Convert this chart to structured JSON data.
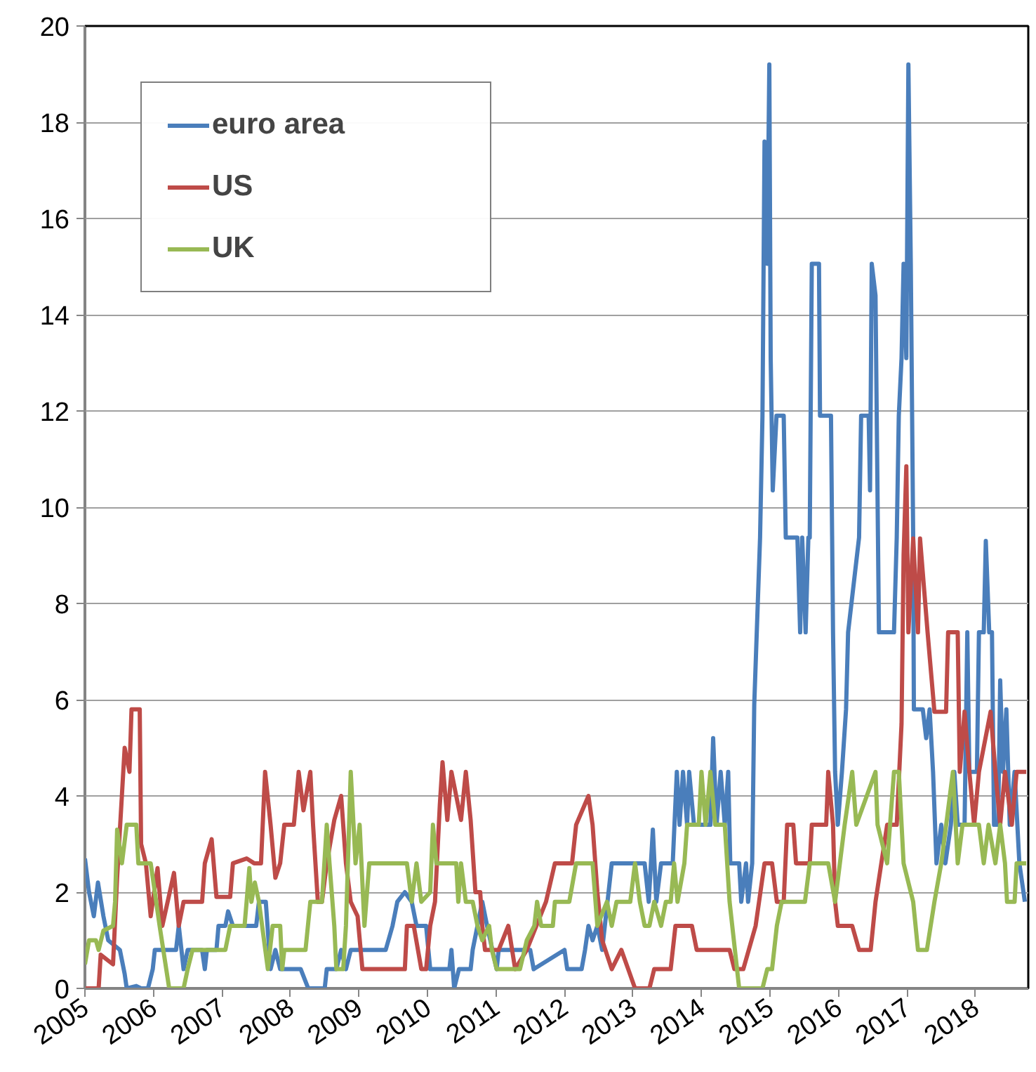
{
  "chart_data": {
    "type": "line",
    "xlim": [
      2005,
      2018.77
    ],
    "xticks": [
      2005,
      2006,
      2007,
      2008,
      2009,
      2010,
      2011,
      2012,
      2013,
      2014,
      2015,
      2016,
      2017,
      2018
    ],
    "ylim": [
      0,
      20
    ],
    "yticks": [
      0,
      2,
      4,
      6,
      8,
      10,
      12,
      14,
      16,
      18,
      20
    ],
    "grid": "y",
    "legend": "top left",
    "line_style": "solid",
    "marker": "none",
    "series": [
      {
        "name": "euro area",
        "color": "#4a7ebb",
        "x": [
          2005.0,
          2005.06,
          2005.13,
          2005.19,
          2005.27,
          2005.34,
          2005.51,
          2005.58,
          2005.61,
          2005.75,
          2005.82,
          2005.92,
          2005.99,
          2006.02,
          2006.33,
          2006.37,
          2006.44,
          2006.5,
          2006.71,
          2006.75,
          2006.78,
          2006.92,
          2006.95,
          2007.05,
          2007.09,
          2007.16,
          2007.5,
          2007.54,
          2007.64,
          2007.71,
          2007.78,
          2007.85,
          2008.15,
          2008.26,
          2008.5,
          2008.53,
          2008.67,
          2008.74,
          2008.81,
          2008.88,
          2009.39,
          2009.49,
          2009.56,
          2009.67,
          2009.77,
          2009.84,
          2009.98,
          2010.04,
          2010.32,
          2010.35,
          2010.39,
          2010.46,
          2010.63,
          2010.66,
          2010.73,
          2010.8,
          2010.87,
          2011.01,
          2011.04,
          2011.5,
          2011.55,
          2012.0,
          2012.04,
          2012.25,
          2012.3,
          2012.35,
          2012.41,
          2012.48,
          2012.55,
          2012.69,
          2013.17,
          2013.23,
          2013.29,
          2013.34,
          2013.41,
          2013.58,
          2013.64,
          2013.68,
          2013.73,
          2013.79,
          2013.82,
          2013.89,
          2014.13,
          2014.17,
          2014.22,
          2014.28,
          2014.34,
          2014.39,
          2014.42,
          2014.55,
          2014.58,
          2014.65,
          2014.68,
          2014.74,
          2014.77,
          2014.855,
          2014.89,
          2014.92,
          2014.96,
          2014.99,
          2015.01,
          2015.04,
          2015.095,
          2015.2,
          2015.23,
          2015.4,
          2015.44,
          2015.47,
          2015.52,
          2015.56,
          2015.58,
          2015.61,
          2015.715,
          2015.73,
          2015.89,
          2015.92,
          2015.95,
          2015.99,
          2016.05,
          2016.11,
          2016.14,
          2016.3,
          2016.33,
          2016.44,
          2016.46,
          2016.485,
          2016.54,
          2016.59,
          2016.81,
          2016.85,
          2016.88,
          2016.92,
          2016.95,
          2016.99,
          2017.02,
          2017.055,
          2017.09,
          2017.1,
          2017.18,
          2017.23,
          2017.28,
          2017.33,
          2017.38,
          2017.43,
          2017.5,
          2017.56,
          2017.64,
          2017.69,
          2017.74,
          2017.84,
          2017.88,
          2017.91,
          2018.02,
          2018.05,
          2018.12,
          2018.15,
          2018.2,
          2018.24,
          2018.27,
          2018.33,
          2018.36,
          2018.4,
          2018.45,
          2018.5,
          2018.57,
          2018.64,
          2018.72
        ],
        "values": [
          2.7,
          2.0,
          1.5,
          2.2,
          1.5,
          1.0,
          0.8,
          0.3,
          0,
          0.05,
          0,
          0,
          0.4,
          0.8,
          0.8,
          1.3,
          0.4,
          0.8,
          0.8,
          0.4,
          0.8,
          0.8,
          1.3,
          1.3,
          1.6,
          1.3,
          1.3,
          1.8,
          1.8,
          0.4,
          0.8,
          0.4,
          0.4,
          0,
          0,
          0.4,
          0.4,
          0.8,
          0.4,
          0.8,
          0.8,
          1.3,
          1.8,
          2.0,
          1.8,
          1.3,
          1.3,
          0.4,
          0.4,
          0.8,
          0,
          0.4,
          0.4,
          0.8,
          1.3,
          1.8,
          1.3,
          0.4,
          0.8,
          0.8,
          0.4,
          0.8,
          0.4,
          0.4,
          0.8,
          1.3,
          1.0,
          1.3,
          0.8,
          2.6,
          2.6,
          1.8,
          3.3,
          1.8,
          2.6,
          2.6,
          4.5,
          3.4,
          4.5,
          3.4,
          4.5,
          3.4,
          3.4,
          5.2,
          3.4,
          4.5,
          3.4,
          4.5,
          2.6,
          2.6,
          1.8,
          2.6,
          1.8,
          2.6,
          5.9,
          9.37,
          11.9,
          17.6,
          15.06,
          19.2,
          13.1,
          10.35,
          11.9,
          11.9,
          9.37,
          9.37,
          7.4,
          9.37,
          7.4,
          9.37,
          9.37,
          15.06,
          15.06,
          11.9,
          11.9,
          7.4,
          4.5,
          3.4,
          4.5,
          5.8,
          7.4,
          9.37,
          11.9,
          11.9,
          10.35,
          15.06,
          14.4,
          7.4,
          7.4,
          9.37,
          11.9,
          13.1,
          15.06,
          13.1,
          19.2,
          15.06,
          9.37,
          5.8,
          5.8,
          5.8,
          5.2,
          5.8,
          4.5,
          2.6,
          3.4,
          2.6,
          3.4,
          4.5,
          3.4,
          3.4,
          7.4,
          4.5,
          4.5,
          7.4,
          7.4,
          9.3,
          7.4,
          7.4,
          3.4,
          3.4,
          6.4,
          4.5,
          5.8,
          3.4,
          4.5,
          2.6,
          1.8
        ]
      },
      {
        "name": "US",
        "color": "#be4b48",
        "x": [
          2005.0,
          2005.2,
          2005.23,
          2005.41,
          2005.47,
          2005.58,
          2005.65,
          2005.68,
          2005.8,
          2005.82,
          2005.89,
          2005.96,
          2006.06,
          2006.13,
          2006.3,
          2006.37,
          2006.44,
          2006.71,
          2006.75,
          2006.85,
          2006.92,
          2007.12,
          2007.16,
          2007.36,
          2007.47,
          2007.57,
          2007.63,
          2007.71,
          2007.78,
          2007.85,
          2007.91,
          2008.05,
          2008.12,
          2008.19,
          2008.29,
          2008.33,
          2008.4,
          2008.46,
          2008.53,
          2008.64,
          2008.74,
          2008.81,
          2008.88,
          2008.98,
          2009.05,
          2009.67,
          2009.7,
          2009.8,
          2009.91,
          2009.98,
          2010.04,
          2010.11,
          2010.18,
          2010.22,
          2010.29,
          2010.35,
          2010.49,
          2010.56,
          2010.63,
          2010.7,
          2010.77,
          2010.8,
          2010.84,
          2011.04,
          2011.18,
          2011.28,
          2011.45,
          2011.59,
          2011.73,
          2011.86,
          2012.11,
          2012.17,
          2012.35,
          2012.41,
          2012.48,
          2012.55,
          2012.69,
          2012.83,
          2012.93,
          2013.03,
          2013.24,
          2013.31,
          2013.55,
          2013.62,
          2013.86,
          2013.93,
          2014.41,
          2014.48,
          2014.61,
          2014.79,
          2014.92,
          2015.03,
          2015.1,
          2015.2,
          2015.25,
          2015.34,
          2015.38,
          2015.58,
          2015.61,
          2015.82,
          2015.85,
          2015.92,
          2015.95,
          2015.99,
          2016.2,
          2016.3,
          2016.47,
          2016.54,
          2016.71,
          2016.85,
          2016.92,
          2016.95,
          2016.99,
          2017.02,
          2017.09,
          2017.16,
          2017.19,
          2017.3,
          2017.4,
          2017.57,
          2017.6,
          2017.74,
          2017.77,
          2017.84,
          2017.91,
          2017.98,
          2018.05,
          2018.22,
          2018.29,
          2018.36,
          2018.43,
          2018.53,
          2018.6,
          2018.74
        ],
        "values": [
          0,
          0,
          0.7,
          0.5,
          2.3,
          5.0,
          4.5,
          5.8,
          5.8,
          3.0,
          2.6,
          1.5,
          2.5,
          1.3,
          2.4,
          1.3,
          1.8,
          1.8,
          2.6,
          3.1,
          1.9,
          1.9,
          2.6,
          2.7,
          2.6,
          2.6,
          4.5,
          3.4,
          2.3,
          2.6,
          3.4,
          3.4,
          4.5,
          3.7,
          4.5,
          3.4,
          1.8,
          1.8,
          2.6,
          3.5,
          4.0,
          2.6,
          1.8,
          1.5,
          0.4,
          0.4,
          1.3,
          1.3,
          0.4,
          0.4,
          1.3,
          1.8,
          3.8,
          4.7,
          3.5,
          4.5,
          3.5,
          4.5,
          3.5,
          2.0,
          2.0,
          1.3,
          0.8,
          0.8,
          1.3,
          0.4,
          0.8,
          1.3,
          1.8,
          2.6,
          2.6,
          3.4,
          4.0,
          3.4,
          2.0,
          1.0,
          0.4,
          0.8,
          0.4,
          0,
          0,
          0.4,
          0.4,
          1.3,
          1.3,
          0.8,
          0.8,
          0.4,
          0.4,
          1.3,
          2.6,
          2.6,
          1.8,
          1.8,
          3.4,
          3.4,
          2.6,
          2.6,
          3.4,
          3.4,
          4.5,
          3.4,
          1.8,
          1.3,
          1.3,
          0.8,
          0.8,
          1.8,
          3.4,
          3.4,
          5.5,
          9.0,
          10.85,
          7.4,
          9.35,
          7.4,
          9.35,
          7.4,
          5.75,
          5.75,
          7.4,
          7.4,
          4.5,
          5.75,
          4.5,
          3.4,
          4.5,
          5.75,
          4.5,
          3.4,
          4.5,
          3.4,
          4.5,
          4.5
        ]
      },
      {
        "name": "UK",
        "color": "#98b954",
        "x": [
          2005.0,
          2005.06,
          2005.16,
          2005.2,
          2005.27,
          2005.41,
          2005.44,
          2005.47,
          2005.54,
          2005.61,
          2005.75,
          2005.78,
          2005.96,
          2005.99,
          2006.09,
          2006.23,
          2006.44,
          2006.5,
          2006.57,
          2007.05,
          2007.12,
          2007.33,
          2007.36,
          2007.4,
          2007.43,
          2007.48,
          2007.54,
          2007.67,
          2007.74,
          2007.85,
          2007.88,
          2007.91,
          2008.22,
          2008.29,
          2008.46,
          2008.53,
          2008.57,
          2008.64,
          2008.67,
          2008.77,
          2008.81,
          2008.88,
          2008.95,
          2009.01,
          2009.08,
          2009.15,
          2009.7,
          2009.77,
          2009.84,
          2009.91,
          2010.04,
          2010.08,
          2010.13,
          2010.42,
          2010.45,
          2010.49,
          2010.56,
          2010.66,
          2010.73,
          2010.8,
          2010.9,
          2010.94,
          2011.01,
          2011.35,
          2011.45,
          2011.56,
          2011.6,
          2011.66,
          2011.83,
          2011.86,
          2012.07,
          2012.17,
          2012.41,
          2012.48,
          2012.62,
          2012.69,
          2012.76,
          2012.96,
          2013.03,
          2013.1,
          2013.17,
          2013.24,
          2013.31,
          2013.41,
          2013.48,
          2013.55,
          2013.6,
          2013.65,
          2013.75,
          2013.79,
          2013.96,
          2014.0,
          2014.06,
          2014.13,
          2014.2,
          2014.34,
          2014.41,
          2014.55,
          2014.89,
          2014.96,
          2015.03,
          2015.1,
          2015.17,
          2015.51,
          2015.58,
          2015.85,
          2015.95,
          2016.02,
          2016.09,
          2016.2,
          2016.26,
          2016.54,
          2016.57,
          2016.71,
          2016.81,
          2016.88,
          2016.95,
          2017.09,
          2017.16,
          2017.29,
          2017.4,
          2017.5,
          2017.67,
          2017.74,
          2017.81,
          2018.05,
          2018.12,
          2018.19,
          2018.29,
          2018.36,
          2018.43,
          2018.46,
          2018.57,
          2018.6,
          2018.74
        ],
        "values": [
          0.5,
          1.0,
          1.0,
          0.8,
          1.2,
          1.3,
          1.8,
          3.3,
          2.6,
          3.4,
          3.4,
          2.6,
          2.6,
          2.3,
          1.3,
          0,
          0,
          0.4,
          0.8,
          0.8,
          1.3,
          1.3,
          1.8,
          2.5,
          1.8,
          2.2,
          1.8,
          0.4,
          1.3,
          1.3,
          0.4,
          0.8,
          0.8,
          1.8,
          1.8,
          3.4,
          2.6,
          1.3,
          0.4,
          0.4,
          1.3,
          4.5,
          2.6,
          3.4,
          1.3,
          2.6,
          2.6,
          1.8,
          2.6,
          1.8,
          2.0,
          3.4,
          2.6,
          2.6,
          1.8,
          2.6,
          1.8,
          1.8,
          1.3,
          1.0,
          1.3,
          0.8,
          0.4,
          0.4,
          1.0,
          1.3,
          1.8,
          1.3,
          1.3,
          1.8,
          1.8,
          2.6,
          2.6,
          1.3,
          1.8,
          1.3,
          1.8,
          1.8,
          2.6,
          1.8,
          1.3,
          1.3,
          1.8,
          1.3,
          1.8,
          1.8,
          2.6,
          1.8,
          2.6,
          3.4,
          3.4,
          4.5,
          3.4,
          4.5,
          3.4,
          3.4,
          1.8,
          0,
          0,
          0.4,
          0.4,
          1.3,
          1.8,
          1.8,
          2.6,
          2.6,
          1.8,
          2.6,
          3.4,
          4.5,
          3.4,
          4.5,
          3.4,
          2.6,
          4.5,
          4.5,
          2.6,
          1.8,
          0.8,
          0.8,
          1.8,
          2.6,
          4.5,
          2.6,
          3.4,
          3.4,
          2.6,
          3.4,
          2.6,
          3.4,
          2.6,
          1.8,
          1.8,
          2.6,
          2.6
        ]
      }
    ]
  }
}
